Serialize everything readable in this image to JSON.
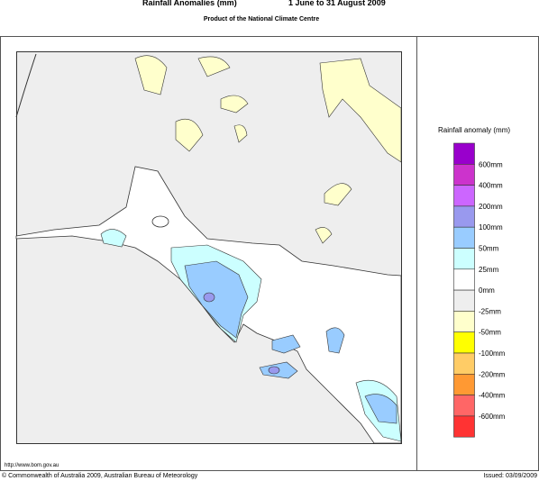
{
  "header": {
    "title": "Rainfall Anomalies (mm)",
    "period": "1 June to 31 August 2009",
    "subtitle": "Product of the National Climate Centre"
  },
  "legend": {
    "title": "Rainfall anomaly (mm)",
    "colors": [
      "#9900cc",
      "#cc33cc",
      "#cc66ff",
      "#9999ee",
      "#99ccff",
      "#ccffff",
      "#ffffff",
      "#eeeeee",
      "#ffffcc",
      "#ffff00",
      "#ffcc66",
      "#ff9933",
      "#ff6666",
      "#ff3333"
    ],
    "labels": [
      "600mm",
      "400mm",
      "200mm",
      "100mm",
      "50mm",
      "25mm",
      "0mm",
      "-25mm",
      "-50mm",
      "-100mm",
      "-200mm",
      "-400mm",
      "-600mm"
    ]
  },
  "footer": {
    "url": "http://www.bom.gov.au",
    "copyright": "© Commonwealth of Australia 2009, Australian Bureau of Meteorology",
    "issued": "Issued: 03/09/2009"
  }
}
